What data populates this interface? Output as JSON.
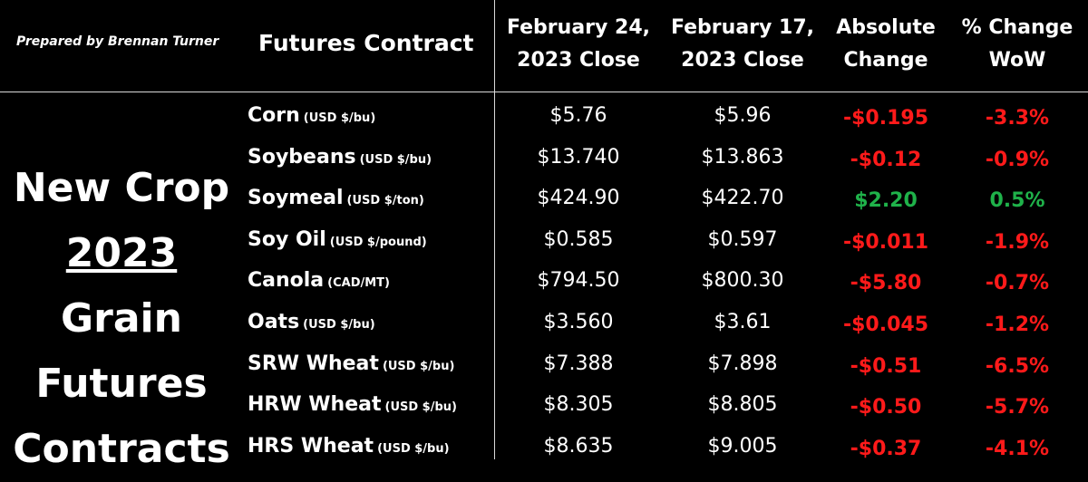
{
  "prepared_by": "Prepared by Brennan Turner",
  "headers": {
    "contract": "Futures Contract",
    "c1_line1": "February 24,",
    "c1_line2": "2023 Close",
    "c2_line1": "February 17,",
    "c2_line2": "2023 Close",
    "c3_line1": "Absolute",
    "c3_line2": "Change",
    "c4_line1": "% Change",
    "c4_line2": "WoW"
  },
  "title": {
    "line1": "New Crop",
    "line2_year": "2023",
    "line2_rest": "Grain",
    "line3": "Futures",
    "line4": "Contracts"
  },
  "colors": {
    "negative": "#ff1a1a",
    "positive": "#1fb24a"
  },
  "rows": [
    {
      "name": "Corn",
      "unit": "(USD $/bu)",
      "feb24": "$5.76",
      "feb17": "$5.96",
      "abs_change": "-$0.195",
      "pct_change": "-3.3%",
      "direction": "neg"
    },
    {
      "name": "Soybeans",
      "unit": "(USD $/bu)",
      "feb24": "$13.740",
      "feb17": "$13.863",
      "abs_change": "-$0.12",
      "pct_change": "-0.9%",
      "direction": "neg"
    },
    {
      "name": "Soymeal",
      "unit": "(USD $/ton)",
      "feb24": "$424.90",
      "feb17": "$422.70",
      "abs_change": "$2.20",
      "pct_change": "0.5%",
      "direction": "pos"
    },
    {
      "name": "Soy Oil",
      "unit": "(USD $/pound)",
      "feb24": "$0.585",
      "feb17": "$0.597",
      "abs_change": "-$0.011",
      "pct_change": "-1.9%",
      "direction": "neg"
    },
    {
      "name": "Canola",
      "unit": "(CAD/MT)",
      "feb24": "$794.50",
      "feb17": "$800.30",
      "abs_change": "-$5.80",
      "pct_change": "-0.7%",
      "direction": "neg"
    },
    {
      "name": "Oats",
      "unit": "(USD $/bu)",
      "feb24": "$3.560",
      "feb17": "$3.61",
      "abs_change": "-$0.045",
      "pct_change": "-1.2%",
      "direction": "neg"
    },
    {
      "name": "SRW Wheat",
      "unit": "(USD $/bu)",
      "feb24": "$7.388",
      "feb17": "$7.898",
      "abs_change": "-$0.51",
      "pct_change": "-6.5%",
      "direction": "neg"
    },
    {
      "name": "HRW Wheat",
      "unit": "(USD $/bu)",
      "feb24": "$8.305",
      "feb17": "$8.805",
      "abs_change": "-$0.50",
      "pct_change": "-5.7%",
      "direction": "neg"
    },
    {
      "name": "HRS Wheat",
      "unit": "(USD $/bu)",
      "feb24": "$8.635",
      "feb17": "$9.005",
      "abs_change": "-$0.37",
      "pct_change": "-4.1%",
      "direction": "neg"
    }
  ]
}
